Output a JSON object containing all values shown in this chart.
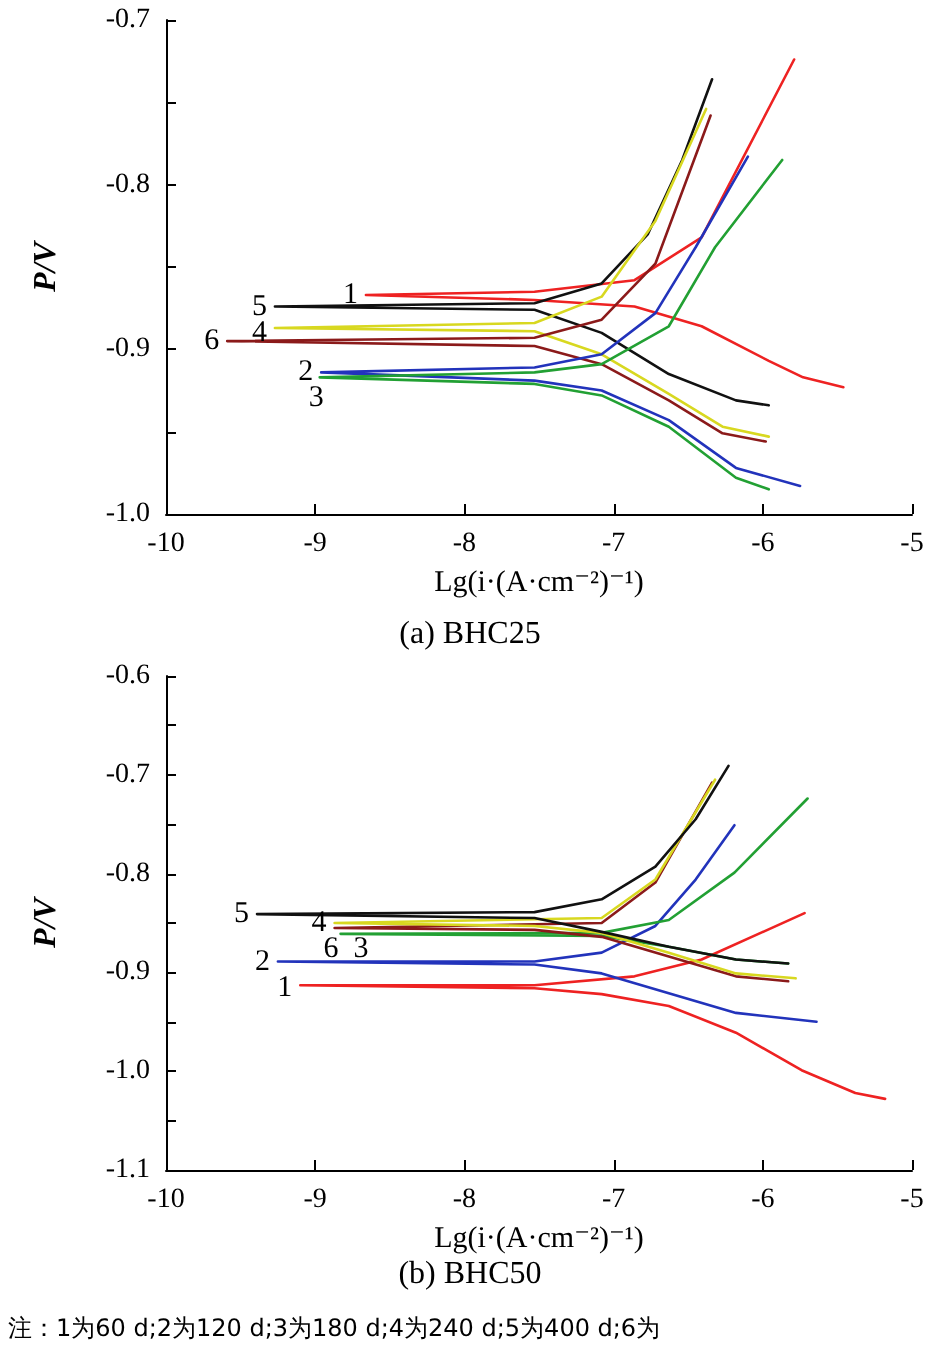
{
  "chart_data": [
    {
      "type": "line",
      "title": "(a) BHC25",
      "xlabel": "Lg(i·(A·cm⁻²)⁻¹)",
      "ylabel": "P/V",
      "xlim": [
        -10,
        -5
      ],
      "xticks": [
        -10,
        -9,
        -8,
        -7,
        -6,
        -5
      ],
      "ylim": [
        -1.0,
        -0.7
      ],
      "yticks": [
        {
          "value": -1.0,
          "label": "-1.0"
        },
        {
          "value": -0.95,
          "label": null
        },
        -0.9,
        {
          "value": -0.85,
          "label": null
        },
        -0.8,
        {
          "value": -0.75,
          "label": null
        },
        -0.7
      ],
      "series": [
        {
          "name": "1",
          "color": "#ee2222",
          "x": [
            -5.79,
            -6.41,
            -6.86,
            -7.53,
            -8.66,
            -7.53,
            -6.86,
            -6.41,
            -5.96,
            -5.73,
            -5.46
          ],
          "values": [
            -0.724,
            -0.832,
            -0.858,
            -0.865,
            -0.867,
            -0.87,
            -0.874,
            -0.886,
            -0.907,
            -0.917,
            -0.923
          ]
        },
        {
          "name": "5",
          "color": "#111111",
          "x": [
            -6.34,
            -6.54,
            -6.77,
            -7.08,
            -7.53,
            -9.27,
            -7.53,
            -7.08,
            -6.63,
            -6.18,
            -5.96
          ],
          "values": [
            -0.736,
            -0.785,
            -0.83,
            -0.86,
            -0.872,
            -0.874,
            -0.876,
            -0.89,
            -0.915,
            -0.931,
            -0.934
          ]
        },
        {
          "name": "4",
          "color": "#d8d820",
          "x": [
            -6.38,
            -6.72,
            -7.08,
            -7.53,
            -9.27,
            -7.53,
            -7.08,
            -6.63,
            -6.27,
            -5.96
          ],
          "values": [
            -0.754,
            -0.822,
            -0.868,
            -0.884,
            -0.887,
            -0.889,
            -0.903,
            -0.927,
            -0.947,
            -0.953
          ]
        },
        {
          "name": "6",
          "color": "#8b1a1a",
          "x": [
            -6.35,
            -6.72,
            -7.08,
            -7.53,
            -9.59,
            -7.53,
            -7.08,
            -6.63,
            -6.27,
            -5.98
          ],
          "values": [
            -0.758,
            -0.848,
            -0.882,
            -0.893,
            -0.895,
            -0.898,
            -0.909,
            -0.931,
            -0.951,
            -0.956
          ]
        },
        {
          "name": "2",
          "color": "#2233bb",
          "x": [
            -6.1,
            -6.45,
            -6.72,
            -7.08,
            -7.53,
            -8.96,
            -7.53,
            -7.08,
            -6.63,
            -6.18,
            -5.75
          ],
          "values": [
            -0.783,
            -0.838,
            -0.878,
            -0.903,
            -0.911,
            -0.914,
            -0.919,
            -0.925,
            -0.943,
            -0.972,
            -0.983
          ]
        },
        {
          "name": "3",
          "color": "#22a033",
          "x": [
            -5.87,
            -6.32,
            -6.63,
            -7.08,
            -7.53,
            -8.97,
            -7.53,
            -7.08,
            -6.63,
            -6.18,
            -5.96
          ],
          "values": [
            -0.785,
            -0.838,
            -0.886,
            -0.909,
            -0.914,
            -0.917,
            -0.921,
            -0.928,
            -0.947,
            -0.978,
            -0.985
          ]
        }
      ]
    },
    {
      "type": "line",
      "title": "(b) BHC50",
      "xlabel": "Lg(i·(A·cm⁻²)⁻¹)",
      "ylabel": "P/V",
      "xlim": [
        -10,
        -5
      ],
      "xticks": [
        -10,
        -9,
        -8,
        -7,
        -6,
        -5
      ],
      "ylim": [
        -1.1,
        -0.6
      ],
      "yticks": [
        -1.1,
        {
          "value": -1.05,
          "label": null
        },
        {
          "value": -1.0,
          "label": "-1.0"
        },
        {
          "value": -0.95,
          "label": null
        },
        -0.9,
        {
          "value": -0.85,
          "label": null
        },
        -0.8,
        {
          "value": -0.75,
          "label": null
        },
        -0.7,
        {
          "value": -0.65,
          "label": null
        },
        -0.6
      ],
      "annotations": [
        "注：1为60 d;2为120 d;3为180 d;4为240 d;5为400 d;6为"
      ],
      "series": [
        {
          "name": "1",
          "color": "#ee2222",
          "x": [
            -5.72,
            -6.41,
            -6.86,
            -7.53,
            -9.1,
            -7.53,
            -7.08,
            -6.63,
            -6.18,
            -5.74,
            -5.38,
            -5.18
          ],
          "values": [
            -0.84,
            -0.887,
            -0.904,
            -0.913,
            -0.913,
            -0.916,
            -0.922,
            -0.934,
            -0.961,
            -0.999,
            -1.022,
            -1.028
          ]
        },
        {
          "name": "2",
          "color": "#2233bb",
          "x": [
            -6.19,
            -6.45,
            -6.72,
            -7.08,
            -7.53,
            -9.25,
            -7.53,
            -7.08,
            -6.63,
            -6.18,
            -5.64
          ],
          "values": [
            -0.751,
            -0.806,
            -0.853,
            -0.88,
            -0.889,
            -0.889,
            -0.892,
            -0.901,
            -0.921,
            -0.941,
            -0.95
          ]
        },
        {
          "name": "3",
          "color": "#22a033",
          "x": [
            -5.7,
            -6.19,
            -6.63,
            -7.08,
            -8.83,
            -7.08,
            -6.63,
            -6.18,
            -5.83
          ],
          "values": [
            -0.724,
            -0.799,
            -0.847,
            -0.86,
            -0.861,
            -0.863,
            -0.874,
            -0.887,
            -0.891
          ]
        },
        {
          "name": "6",
          "color": "#8b1a1a",
          "x": [
            -6.34,
            -6.72,
            -7.08,
            -8.87,
            -7.53,
            -7.08,
            -6.63,
            -6.18,
            -5.83
          ],
          "values": [
            -0.708,
            -0.809,
            -0.85,
            -0.855,
            -0.857,
            -0.864,
            -0.884,
            -0.904,
            -0.909
          ]
        },
        {
          "name": "4",
          "color": "#d8d820",
          "x": [
            -6.32,
            -6.72,
            -7.08,
            -8.87,
            -7.53,
            -7.08,
            -6.63,
            -6.18,
            -5.78
          ],
          "values": [
            -0.705,
            -0.806,
            -0.845,
            -0.85,
            -0.853,
            -0.86,
            -0.88,
            -0.901,
            -0.906
          ]
        },
        {
          "name": "5",
          "color": "#111111",
          "x": [
            -6.23,
            -6.45,
            -6.72,
            -7.08,
            -7.53,
            -9.39,
            -7.53,
            -7.08,
            -6.63,
            -6.18,
            -5.83
          ],
          "values": [
            -0.691,
            -0.745,
            -0.793,
            -0.826,
            -0.839,
            -0.841,
            -0.845,
            -0.859,
            -0.874,
            -0.887,
            -0.891
          ]
        }
      ]
    }
  ]
}
